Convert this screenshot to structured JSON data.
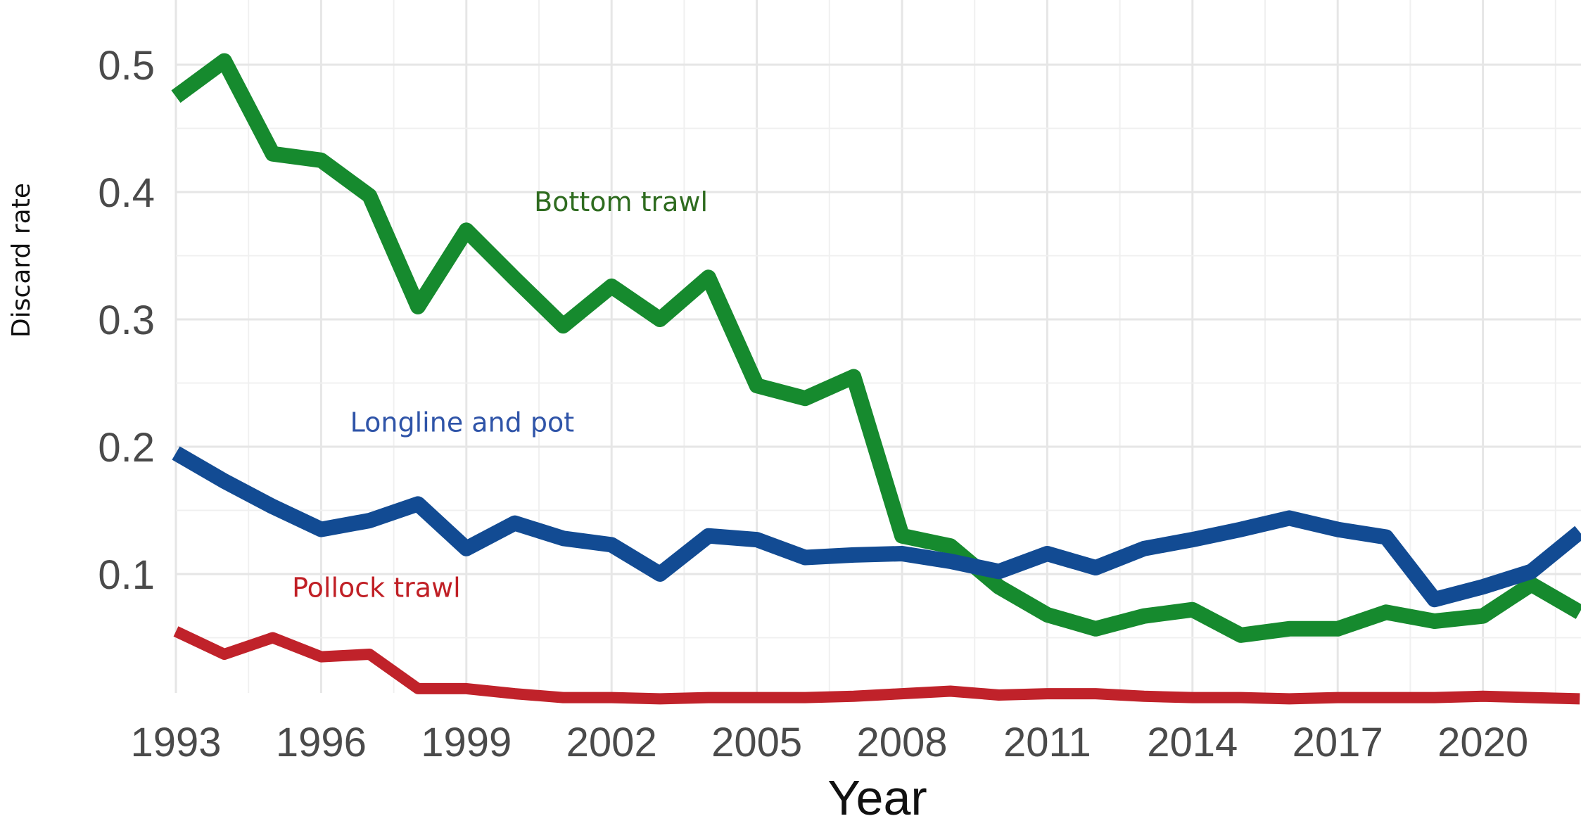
{
  "chart_data": {
    "type": "line",
    "xlabel": "Year",
    "ylabel": "Discard rate",
    "xlim": [
      1993,
      2022
    ],
    "ylim": [
      0,
      0.53
    ],
    "x_ticks": [
      1993,
      1996,
      1999,
      2002,
      2005,
      2008,
      2011,
      2014,
      2017,
      2020
    ],
    "y_ticks": [
      0.1,
      0.2,
      0.3,
      0.4,
      0.5
    ],
    "y_tick_labels": [
      "0.1",
      "0.2",
      "0.3",
      "0.4",
      "0.5"
    ],
    "grid": true,
    "x": [
      1993,
      1994,
      1995,
      1996,
      1997,
      1998,
      1999,
      2000,
      2001,
      2002,
      2003,
      2004,
      2005,
      2006,
      2007,
      2008,
      2009,
      2010,
      2011,
      2012,
      2013,
      2014,
      2015,
      2016,
      2017,
      2018,
      2019,
      2020,
      2021,
      2022
    ],
    "series": [
      {
        "name": "Bottom trawl",
        "color": "#168a2e",
        "label_color": "#2e6b1f",
        "label_anchor": [
          2000.4,
          0.385
        ],
        "values": [
          0.475,
          0.503,
          0.43,
          0.425,
          0.397,
          0.31,
          0.37,
          0.332,
          0.295,
          0.326,
          0.3,
          0.333,
          0.248,
          0.238,
          0.255,
          0.13,
          0.122,
          0.09,
          0.068,
          0.057,
          0.067,
          0.072,
          0.052,
          0.057,
          0.057,
          0.07,
          0.063,
          0.067,
          0.092,
          0.07
        ]
      },
      {
        "name": "Longline and pot",
        "color": "#124b93",
        "label_color": "#2f54a8",
        "label_anchor": [
          1996.6,
          0.212
        ],
        "values": [
          0.195,
          0.173,
          0.153,
          0.135,
          0.142,
          0.155,
          0.12,
          0.14,
          0.128,
          0.123,
          0.1,
          0.13,
          0.127,
          0.113,
          0.115,
          0.116,
          0.11,
          0.102,
          0.116,
          0.105,
          0.12,
          0.127,
          0.135,
          0.144,
          0.135,
          0.129,
          0.08,
          0.09,
          0.102,
          0.133
        ]
      },
      {
        "name": "Pollock trawl",
        "color": "#c0222a",
        "label_color": "#c01f25",
        "label_anchor": [
          1995.4,
          0.082
        ],
        "values": [
          0.055,
          0.037,
          0.05,
          0.035,
          0.037,
          0.01,
          0.01,
          0.006,
          0.003,
          0.003,
          0.002,
          0.003,
          0.003,
          0.003,
          0.004,
          0.006,
          0.008,
          0.005,
          0.006,
          0.006,
          0.004,
          0.003,
          0.003,
          0.002,
          0.003,
          0.003,
          0.003,
          0.004,
          0.003,
          0.002
        ]
      }
    ]
  }
}
